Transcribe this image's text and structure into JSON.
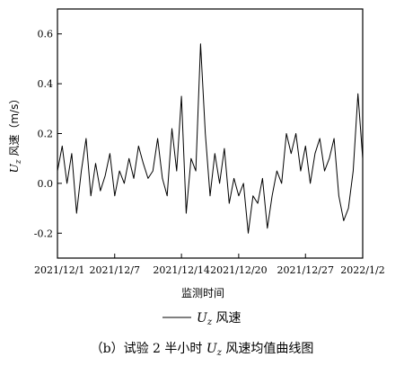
{
  "chart_data": {
    "type": "line",
    "ylabel": "Uz 风速 (m/s)",
    "ylabel_parts": {
      "symbol": "U",
      "subscript": "z",
      "rest": " 风速（m/s）"
    },
    "xlabel": "监测时间",
    "ylim": [
      -0.3,
      0.7
    ],
    "yticks": [
      -0.2,
      0.0,
      0.2,
      0.4,
      0.6
    ],
    "ytick_labels": [
      "-0.2",
      "0.0",
      "0.2",
      "0.4",
      "0.6"
    ],
    "xlim": [
      "2021-12-01",
      "2022-01-02"
    ],
    "xticks": [
      "2021-12-01",
      "2021-12-07",
      "2021-12-14",
      "2021-12-20",
      "2021-12-27",
      "2022-01-02"
    ],
    "xtick_labels": [
      "2021/12/1",
      "2021/12/7",
      "2021/12/14",
      "2021/12/20",
      "2021/12/27",
      "2022/1/2"
    ],
    "grid": false,
    "legend_position": "bottom-center",
    "series": [
      {
        "name": "Uz 风速",
        "name_parts": {
          "symbol": "U",
          "subscript": "z",
          "rest": " 风速"
        },
        "color": "#000000",
        "x": [
          "2021-12-01",
          "2021-12-01T12:00",
          "2021-12-02",
          "2021-12-02T12:00",
          "2021-12-03",
          "2021-12-03T12:00",
          "2021-12-04",
          "2021-12-04T12:00",
          "2021-12-05",
          "2021-12-05T12:00",
          "2021-12-06",
          "2021-12-06T12:00",
          "2021-12-07",
          "2021-12-07T12:00",
          "2021-12-08",
          "2021-12-08T12:00",
          "2021-12-09",
          "2021-12-09T12:00",
          "2021-12-10",
          "2021-12-10T12:00",
          "2021-12-11",
          "2021-12-11T12:00",
          "2021-12-12",
          "2021-12-12T12:00",
          "2021-12-13",
          "2021-12-13T12:00",
          "2021-12-14",
          "2021-12-14T12:00",
          "2021-12-15",
          "2021-12-15T12:00",
          "2021-12-16",
          "2021-12-16T12:00",
          "2021-12-17",
          "2021-12-17T12:00",
          "2021-12-18",
          "2021-12-18T12:00",
          "2021-12-19",
          "2021-12-19T12:00",
          "2021-12-20",
          "2021-12-20T12:00",
          "2021-12-21",
          "2021-12-21T12:00",
          "2021-12-22",
          "2021-12-22T12:00",
          "2021-12-23",
          "2021-12-23T12:00",
          "2021-12-24",
          "2021-12-24T12:00",
          "2021-12-25",
          "2021-12-25T12:00",
          "2021-12-26",
          "2021-12-26T12:00",
          "2021-12-27",
          "2021-12-27T12:00",
          "2021-12-28",
          "2021-12-28T12:00",
          "2021-12-29",
          "2021-12-29T12:00",
          "2021-12-30",
          "2021-12-30T12:00",
          "2021-12-31",
          "2021-12-31T12:00",
          "2022-01-01",
          "2022-01-01T12:00",
          "2022-01-02"
        ],
        "values": [
          0.05,
          0.15,
          0.0,
          0.12,
          -0.12,
          0.05,
          0.18,
          -0.05,
          0.08,
          -0.03,
          0.03,
          0.12,
          -0.05,
          0.05,
          0.0,
          0.1,
          0.02,
          0.15,
          0.08,
          0.02,
          0.05,
          0.18,
          0.02,
          -0.05,
          0.22,
          0.05,
          0.35,
          -0.12,
          0.1,
          0.05,
          0.56,
          0.2,
          -0.05,
          0.12,
          0.0,
          0.14,
          -0.08,
          0.02,
          -0.05,
          0.0,
          -0.2,
          -0.05,
          -0.08,
          0.02,
          -0.18,
          -0.05,
          0.05,
          0.0,
          0.2,
          0.12,
          0.2,
          0.05,
          0.15,
          0.0,
          0.12,
          0.18,
          0.05,
          0.1,
          0.18,
          -0.05,
          -0.15,
          -0.1,
          0.05,
          0.36,
          0.1
        ]
      }
    ]
  },
  "caption": {
    "prefix": "（b）试验 2 半小时 ",
    "symbol": "U",
    "subscript": "z",
    "rest": " 风速均值曲线图"
  }
}
